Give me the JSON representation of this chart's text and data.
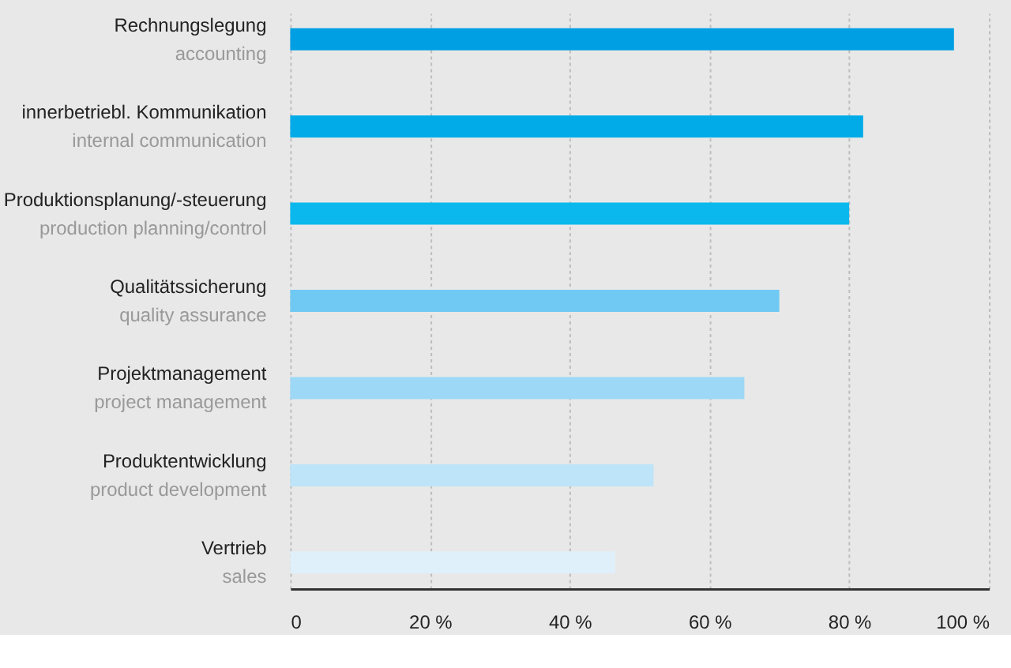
{
  "chart_data": {
    "type": "bar",
    "orientation": "horizontal",
    "categories": [
      "Rechnungslegung\naccounting",
      "innerbetriebl. Kommunikation\ninternal communication",
      "Produktionsplanung/-steuerung\nproduction planning/control",
      "Qualitätssicherung\nquality assurance",
      "Projektmanagement\nproject management",
      "Produktentwicklung\nproduct development",
      "Vertrieb\nsales"
    ],
    "values": [
      95,
      82,
      80,
      70,
      65,
      52,
      46.5
    ],
    "colors": [
      "#009fe3",
      "#00abe8",
      "#0ab8ee",
      "#6fc9f3",
      "#9dd8f6",
      "#bde4f8",
      "#dff0fb"
    ],
    "xlim": [
      0,
      100
    ],
    "xticks": [
      0,
      {
        "value": 20,
        "label": "20 %"
      },
      {
        "value": 40,
        "label": "40 %"
      },
      {
        "value": 60,
        "label": "60 %"
      },
      {
        "value": 80,
        "label": "80 %"
      },
      {
        "value": 100,
        "label": "100 %"
      }
    ],
    "grid": "x"
  }
}
